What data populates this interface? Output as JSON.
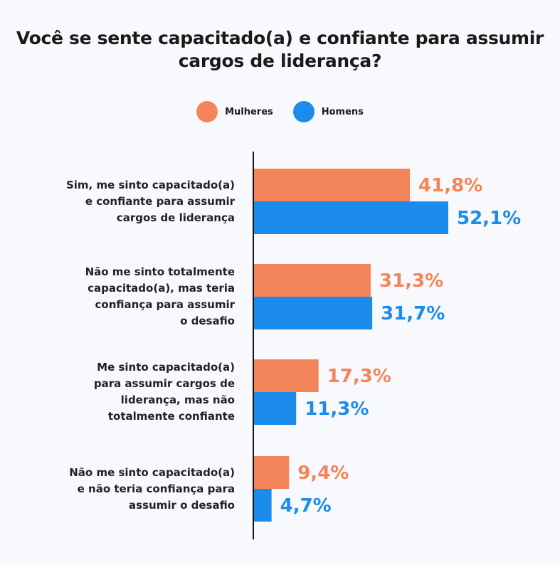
{
  "chart_data": {
    "type": "bar",
    "orientation": "horizontal",
    "title": "Você se sente capacitado(a) e confiante para assumir cargos de liderança?",
    "legend_position": "top",
    "categories": [
      "Sim, me sinto capacitado(a) e confiante para assumir cargos de liderança",
      "Não me sinto totalmente capacitado(a), mas teria confiança para assumir o desafio",
      "Me sinto capacitado(a) para assumir cargos de liderança, mas não totalmente confiante",
      "Não me sinto capacitado(a) e não teria confiança para assumir o desafio"
    ],
    "category_lines": [
      [
        "Sim, me sinto capacitado(a)",
        "e confiante para assumir",
        "cargos de liderança"
      ],
      [
        "Não me sinto totalmente",
        "capacitado(a), mas teria",
        "confiança para assumir",
        "o desafio"
      ],
      [
        "Me sinto capacitado(a)",
        "para assumir cargos de",
        "liderança, mas não",
        "totalmente confiante"
      ],
      [
        "Não me sinto capacitado(a)",
        "e não teria confiança para",
        "assumir o desafio"
      ]
    ],
    "series": [
      {
        "name": "Mulheres",
        "color": "#f4845a",
        "values": [
          41.8,
          31.3,
          17.3,
          9.4
        ],
        "labels": [
          "41,8%",
          "31,3%",
          "17,3%",
          "9,4%"
        ]
      },
      {
        "name": "Homens",
        "color": "#1b8cec",
        "values": [
          52.1,
          31.7,
          11.3,
          4.7
        ],
        "labels": [
          "52,1%",
          "31,7%",
          "11,3%",
          "4,7%"
        ]
      }
    ],
    "grid": false
  }
}
